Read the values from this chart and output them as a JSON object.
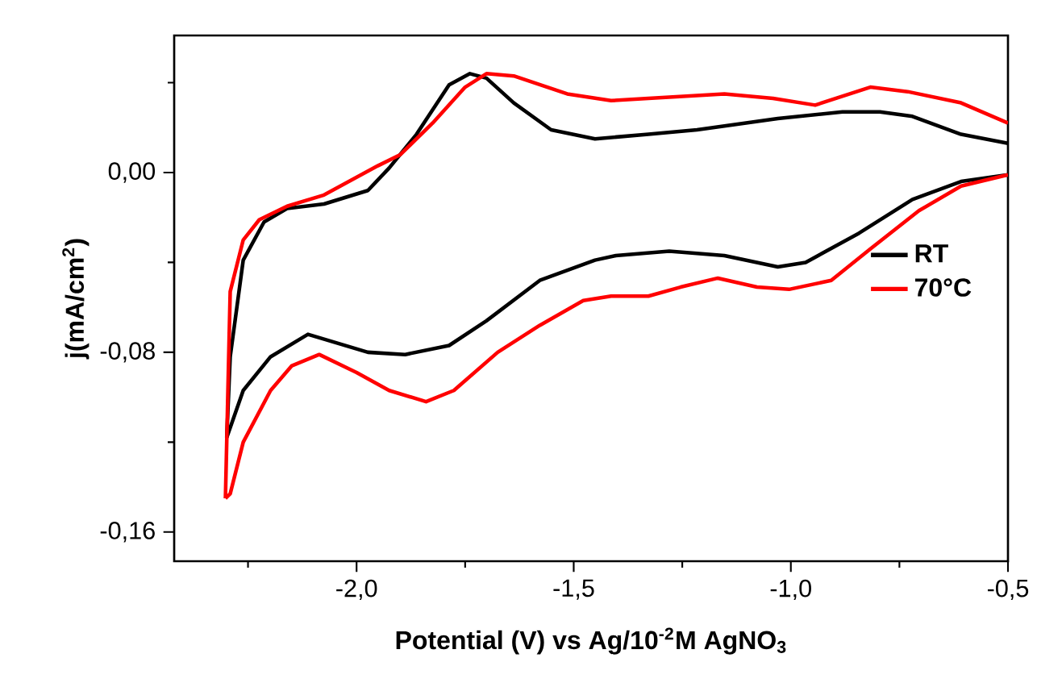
{
  "chart_data": {
    "type": "line",
    "xlabel": "Potential  (V) vs Ag/10$^{-2}$M AgNO$_{3}$",
    "ylabel": "j(mA/cm$^{2}$)",
    "xlim": [
      -2.42,
      -0.5
    ],
    "ylim": [
      -0.173,
      0.061
    ],
    "xticks": [
      {
        "value": -2.25,
        "label": null
      },
      {
        "value": -2.0,
        "label": "-2,0"
      },
      {
        "value": -1.75,
        "label": null
      },
      {
        "value": -1.5,
        "label": "-1,5"
      },
      {
        "value": -1.25,
        "label": null
      },
      {
        "value": -1.0,
        "label": "-1,0"
      },
      {
        "value": -0.75,
        "label": null
      },
      {
        "value": -0.5,
        "label": "-0,5"
      }
    ],
    "yticks": [
      {
        "value": 0.04,
        "label": null
      },
      {
        "value": 0,
        "label": "0,00"
      },
      {
        "value": -0.04,
        "label": null
      },
      {
        "value": -0.08,
        "label": "-0,08"
      },
      {
        "value": -0.12,
        "label": null
      },
      {
        "value": -0.16,
        "label": "-0,16"
      }
    ],
    "legend": "right",
    "grid": false,
    "marker": "none",
    "line_style": "solid",
    "series": [
      {
        "name": "RT",
        "color": "#000000",
        "x": [
          -2.299,
          -2.291,
          -2.261,
          -2.213,
          -2.16,
          -2.075,
          -1.974,
          -1.925,
          -1.862,
          -1.787,
          -1.739,
          -1.701,
          -1.638,
          -1.552,
          -1.451,
          -1.328,
          -1.216,
          -1.03,
          -0.881,
          -0.795,
          -0.72,
          -0.608,
          -0.5
        ],
        "values": [
          -0.118,
          -0.082,
          -0.039,
          -0.022,
          -0.016,
          -0.014,
          -0.008,
          0.002,
          0.017,
          0.039,
          0.044,
          0.042,
          0.031,
          0.019,
          0.015,
          0.017,
          0.019,
          0.024,
          0.027,
          0.027,
          0.025,
          0.017,
          0.013
        ]
      },
      {
        "color": "#000000",
        "x": [
          -2.299,
          -2.261,
          -2.198,
          -2.112,
          -1.974,
          -1.888,
          -1.787,
          -1.701,
          -1.578,
          -1.451,
          -1.403,
          -1.28,
          -1.153,
          -1.03,
          -0.966,
          -0.843,
          -0.72,
          -0.608,
          -0.5
        ],
        "values": [
          -0.118,
          -0.097,
          -0.082,
          -0.072,
          -0.08,
          -0.081,
          -0.077,
          -0.066,
          -0.048,
          -0.039,
          -0.037,
          -0.035,
          -0.037,
          -0.042,
          -0.04,
          -0.027,
          -0.012,
          -0.004,
          -0.001
        ]
      },
      {
        "name": "70°C",
        "color": "#ff0000",
        "x": [
          -2.302,
          -2.291,
          -2.261,
          -2.224,
          -2.16,
          -2.075,
          -1.951,
          -1.899,
          -1.825,
          -1.75,
          -1.701,
          -1.638,
          -1.515,
          -1.414,
          -1.328,
          -1.153,
          -1.041,
          -0.944,
          -0.817,
          -0.731,
          -0.608,
          -0.5
        ],
        "values": [
          -0.145,
          -0.053,
          -0.03,
          -0.021,
          -0.015,
          -0.01,
          0.003,
          0.008,
          0.022,
          0.038,
          0.044,
          0.043,
          0.035,
          0.032,
          0.033,
          0.035,
          0.033,
          0.03,
          0.038,
          0.036,
          0.031,
          0.022
        ]
      },
      {
        "color": "#ff0000",
        "x": [
          -2.302,
          -2.291,
          -2.261,
          -2.198,
          -2.149,
          -2.086,
          -2.0,
          -1.925,
          -1.84,
          -1.776,
          -1.675,
          -1.578,
          -1.478,
          -1.414,
          -1.328,
          -1.254,
          -1.168,
          -1.078,
          -1.004,
          -0.907,
          -0.817,
          -0.705,
          -0.608,
          -0.5
        ],
        "values": [
          -0.145,
          -0.143,
          -0.12,
          -0.097,
          -0.086,
          -0.081,
          -0.089,
          -0.097,
          -0.102,
          -0.097,
          -0.08,
          -0.068,
          -0.057,
          -0.055,
          -0.055,
          -0.051,
          -0.047,
          -0.051,
          -0.052,
          -0.048,
          -0.034,
          -0.017,
          -0.006,
          -0.001
        ]
      }
    ]
  }
}
